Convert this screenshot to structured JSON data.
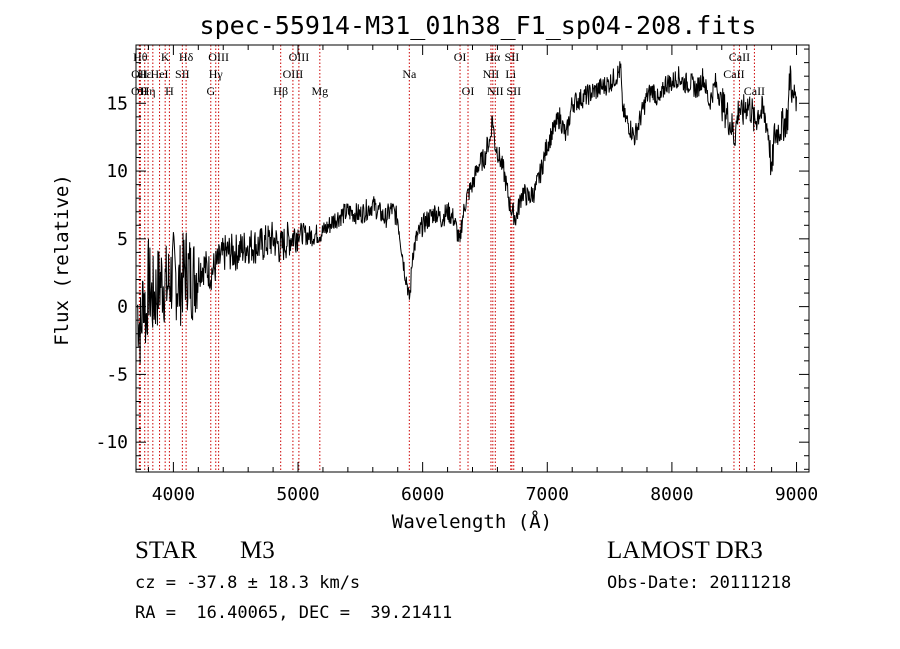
{
  "chart_data": {
    "type": "line",
    "title": "spec-55914-M31_01h38_F1_sp04-208.fits",
    "xlabel": "Wavelength (Å)",
    "ylabel": "Flux (relative)",
    "xlim": [
      3700,
      9100
    ],
    "ylim": [
      -12.2,
      19.3
    ],
    "xticks": [
      4000,
      5000,
      6000,
      7000,
      8000,
      9000
    ],
    "yticks": [
      -10,
      -5,
      0,
      5,
      10,
      15
    ],
    "grid": false,
    "series": [
      {
        "color": "#000000",
        "x": [
          3710,
          3740,
          3760,
          3780,
          3800,
          3830,
          3860,
          3900,
          3950,
          4000,
          4050,
          4100,
          4150,
          4200,
          4250,
          4300,
          4340,
          4380,
          4420,
          4500,
          4600,
          4700,
          4800,
          4860,
          4900,
          5000,
          5100,
          5200,
          5300,
          5400,
          5500,
          5600,
          5700,
          5750,
          5800,
          5850,
          5880,
          5890,
          5900,
          5920,
          5950,
          6000,
          6050,
          6100,
          6150,
          6200,
          6250,
          6290,
          6300,
          6310,
          6350,
          6400,
          6450,
          6500,
          6520,
          6540,
          6560,
          6580,
          6600,
          6650,
          6700,
          6720,
          6750,
          6800,
          6850,
          6900,
          6950,
          7000,
          7050,
          7100,
          7150,
          7200,
          7300,
          7400,
          7500,
          7550,
          7590,
          7600,
          7620,
          7650,
          7700,
          7750,
          7800,
          7850,
          7900,
          7950,
          8000,
          8050,
          8100,
          8150,
          8200,
          8250,
          8300,
          8350,
          8400,
          8450,
          8490,
          8500,
          8520,
          8540,
          8560,
          8600,
          8640,
          8660,
          8700,
          8750,
          8780,
          8800,
          8820,
          8850,
          8900,
          8930,
          8950,
          8970,
          8990,
          9000
        ],
        "y": [
          0,
          -2,
          1.5,
          -1,
          2,
          0.5,
          1,
          2,
          1.5,
          2.5,
          1.5,
          3,
          2,
          2.8,
          3,
          2.5,
          3,
          3.5,
          4,
          4,
          4.5,
          4.5,
          5,
          4.3,
          4.8,
          5.5,
          5.2,
          5.5,
          6.5,
          7,
          6.8,
          7.5,
          6.5,
          7.2,
          6.5,
          3,
          1.5,
          0.5,
          1,
          4,
          5,
          6,
          6.5,
          7,
          6.5,
          7,
          6.5,
          5,
          4.5,
          6,
          8,
          9,
          10.5,
          11,
          12,
          12.2,
          14,
          12,
          11.5,
          10,
          7.5,
          7,
          6.5,
          8.5,
          8,
          8.5,
          10,
          12,
          13,
          14,
          12.5,
          15,
          15.5,
          16,
          16.5,
          17,
          17.5,
          15,
          14,
          13.5,
          12.5,
          14,
          15.5,
          16,
          15,
          16.5,
          16.5,
          17,
          16.5,
          16.5,
          16,
          17,
          15,
          16.5,
          15,
          14,
          13,
          12.5,
          13.5,
          15,
          14,
          15,
          14.5,
          13.5,
          14.5,
          14,
          12.5,
          9.5,
          12.5,
          13,
          13.5,
          14,
          17.5,
          15,
          16,
          15.5
        ]
      }
    ],
    "lines": [
      {
        "x": 3735,
        "label": "Hθ",
        "row": 0
      },
      {
        "x": 3728,
        "label": "OII",
        "row": 1
      },
      {
        "x": 3727,
        "label": "OII",
        "row": 2
      },
      {
        "x": 3770,
        "label": "Hε",
        "row": 1
      },
      {
        "x": 3797,
        "label": "Hη",
        "row": 2
      },
      {
        "x": 3835,
        "label": "",
        "row": 0
      },
      {
        "x": 3889,
        "label": "HeI",
        "row": 1
      },
      {
        "x": 3934,
        "label": "K",
        "row": 0
      },
      {
        "x": 3968,
        "label": "H",
        "row": 2
      },
      {
        "x": 4072,
        "label": "SII",
        "row": 1
      },
      {
        "x": 4102,
        "label": "Hδ",
        "row": 0
      },
      {
        "x": 4300,
        "label": "G",
        "row": 2
      },
      {
        "x": 4340,
        "label": "Hγ",
        "row": 1
      },
      {
        "x": 4363,
        "label": "OIII",
        "row": 0
      },
      {
        "x": 4861,
        "label": "Hβ",
        "row": 2
      },
      {
        "x": 4959,
        "label": "OIII",
        "row": 1
      },
      {
        "x": 5007,
        "label": "OIII",
        "row": 0
      },
      {
        "x": 5175,
        "label": "Mg",
        "row": 2
      },
      {
        "x": 5893,
        "label": "Na",
        "row": 1
      },
      {
        "x": 6300,
        "label": "OI",
        "row": 0
      },
      {
        "x": 6364,
        "label": "OI",
        "row": 2
      },
      {
        "x": 6548,
        "label": "NII",
        "row": 1
      },
      {
        "x": 6563,
        "label": "Hα",
        "row": 0
      },
      {
        "x": 6583,
        "label": "NII",
        "row": 2
      },
      {
        "x": 6707,
        "label": "Li",
        "row": 1
      },
      {
        "x": 6716,
        "label": "SII",
        "row": 0
      },
      {
        "x": 6731,
        "label": "SII",
        "row": 2
      },
      {
        "x": 8498,
        "label": "CaII",
        "row": 1
      },
      {
        "x": 8542,
        "label": "CaII",
        "row": 0
      },
      {
        "x": 8662,
        "label": "CaII",
        "row": 2
      }
    ]
  },
  "info": {
    "class": "STAR",
    "subclass": "M3",
    "survey": "LAMOST DR3",
    "cz": "cz = -37.8 ± 18.3 km/s",
    "obs_date": "Obs-Date: 20111218",
    "radec": "RA =  16.40065, DEC =  39.21411"
  },
  "colors": {
    "spectrum": "#000000",
    "line_markers": "#cc0000"
  }
}
